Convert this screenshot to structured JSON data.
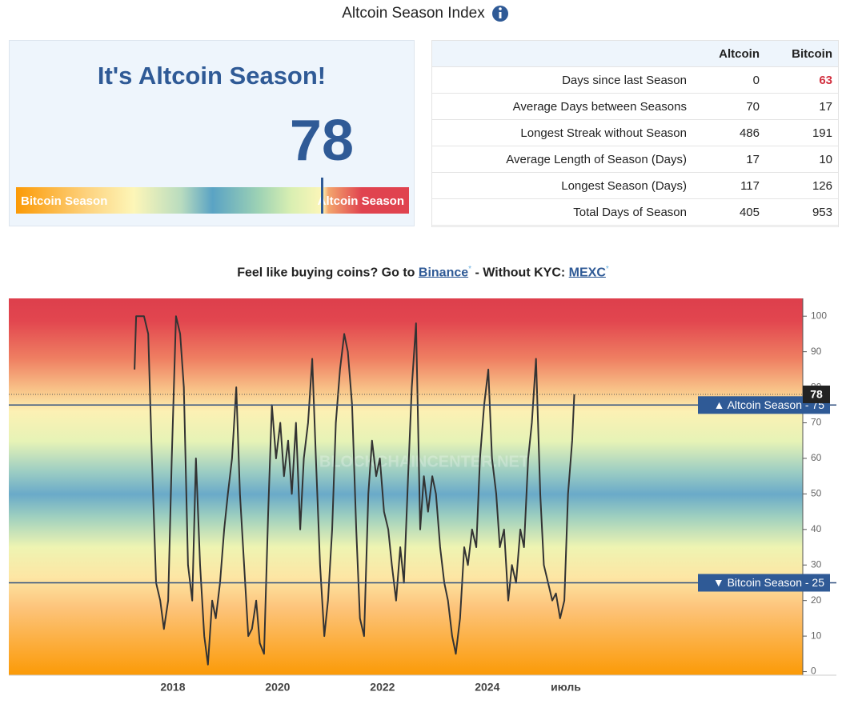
{
  "header": {
    "title": "Altcoin Season Index"
  },
  "gauge": {
    "heading": "It's Altcoin Season!",
    "value": 78,
    "scale": [
      0,
      100
    ],
    "left_label": "Bitcoin Season",
    "right_label": "Altcoin Season"
  },
  "table": {
    "columns": [
      "Altcoin",
      "Bitcoin"
    ],
    "rows": [
      [
        "Days since last Season",
        0,
        63
      ],
      [
        "Average Days between Seasons",
        70,
        17
      ],
      [
        "Longest Streak without Season",
        486,
        191
      ],
      [
        "Average Length of Season (Days)",
        17,
        10
      ],
      [
        "Longest Season (Days)",
        117,
        126
      ],
      [
        "Total Days of Season",
        405,
        953
      ]
    ]
  },
  "promo": {
    "text1": "Feel like buying coins? Go to",
    "link1": "Binance",
    "star1": "*",
    "text2": "- Without KYC:",
    "link2": "MEXC",
    "star2": "*"
  },
  "chart_data": {
    "type": "line",
    "watermark": "BLOCKCHAINCENTER.NET",
    "x": [
      2017.27,
      2017.3,
      2017.37,
      2017.45,
      2017.53,
      2017.6,
      2017.68,
      2017.76,
      2017.83,
      2017.91,
      2017.98,
      2018.06,
      2018.14,
      2018.21,
      2018.29,
      2018.37,
      2018.44,
      2018.52,
      2018.6,
      2018.67,
      2018.75,
      2018.82,
      2018.9,
      2018.98,
      2019.05,
      2019.13,
      2019.21,
      2019.28,
      2019.36,
      2019.44,
      2019.51,
      2019.59,
      2019.66,
      2019.74,
      2019.82,
      2019.89,
      2019.97,
      2020.05,
      2020.12,
      2020.2,
      2020.27,
      2020.35,
      2020.43,
      2020.5,
      2020.58,
      2020.66,
      2020.73,
      2020.81,
      2020.89,
      2020.96,
      2021.04,
      2021.11,
      2021.19,
      2021.27,
      2021.34,
      2021.42,
      2021.5,
      2021.57,
      2021.65,
      2021.73,
      2021.8,
      2021.88,
      2021.95,
      2022.03,
      2022.11,
      2022.18,
      2022.26,
      2022.34,
      2022.41,
      2022.49,
      2022.56,
      2022.64,
      2022.72,
      2022.79,
      2022.87,
      2022.95,
      2023.02,
      2023.1,
      2023.18,
      2023.25,
      2023.33,
      2023.4,
      2023.48,
      2023.56,
      2023.63,
      2023.71,
      2023.79,
      2023.86,
      2023.94,
      2024.02,
      2024.09,
      2024.17,
      2024.24,
      2024.32,
      2024.4,
      2024.47,
      2024.55,
      2024.63,
      2024.7,
      2024.78,
      2024.85,
      2024.93,
      2025.01,
      2025.08,
      2025.16,
      2025.24,
      2025.31,
      2025.39,
      2025.47,
      2025.54,
      2025.62,
      2025.66
    ],
    "series": [
      {
        "color": "#333333",
        "values": [
          85,
          100,
          100,
          100,
          95,
          60,
          25,
          20,
          12,
          20,
          60,
          100,
          95,
          80,
          30,
          20,
          60,
          30,
          10,
          2,
          20,
          15,
          25,
          40,
          50,
          60,
          80,
          50,
          30,
          10,
          12,
          20,
          8,
          5,
          45,
          75,
          60,
          70,
          55,
          65,
          50,
          70,
          40,
          60,
          70,
          88,
          60,
          30,
          10,
          20,
          40,
          70,
          85,
          95,
          90,
          75,
          40,
          15,
          10,
          50,
          65,
          55,
          60,
          45,
          40,
          30,
          20,
          35,
          25,
          55,
          80,
          98,
          40,
          55,
          45,
          55,
          50,
          35,
          25,
          20,
          10,
          5,
          15,
          35,
          30,
          40,
          35,
          60,
          75,
          85,
          60,
          50,
          35,
          40,
          20,
          30,
          25,
          40,
          35,
          60,
          70,
          88,
          50,
          30,
          25,
          20,
          22,
          15,
          20,
          50,
          65,
          78
        ]
      }
    ],
    "xlim": [
      2014.87,
      2030.02
    ],
    "xticks": [
      2018,
      2020,
      2022,
      2024,
      {
        "value": 2025.5,
        "label": "июль"
      }
    ],
    "ylim": [
      -1,
      105
    ],
    "yticks": [
      0,
      10,
      20,
      30,
      40,
      50,
      60,
      70,
      80,
      90,
      100
    ],
    "reference_lines": [
      {
        "value": 75,
        "label": "▲ Altcoin Season - 75"
      },
      {
        "value": 25,
        "label": "▼ Bitcoin Season - 25"
      }
    ],
    "current": {
      "value": 78
    }
  }
}
